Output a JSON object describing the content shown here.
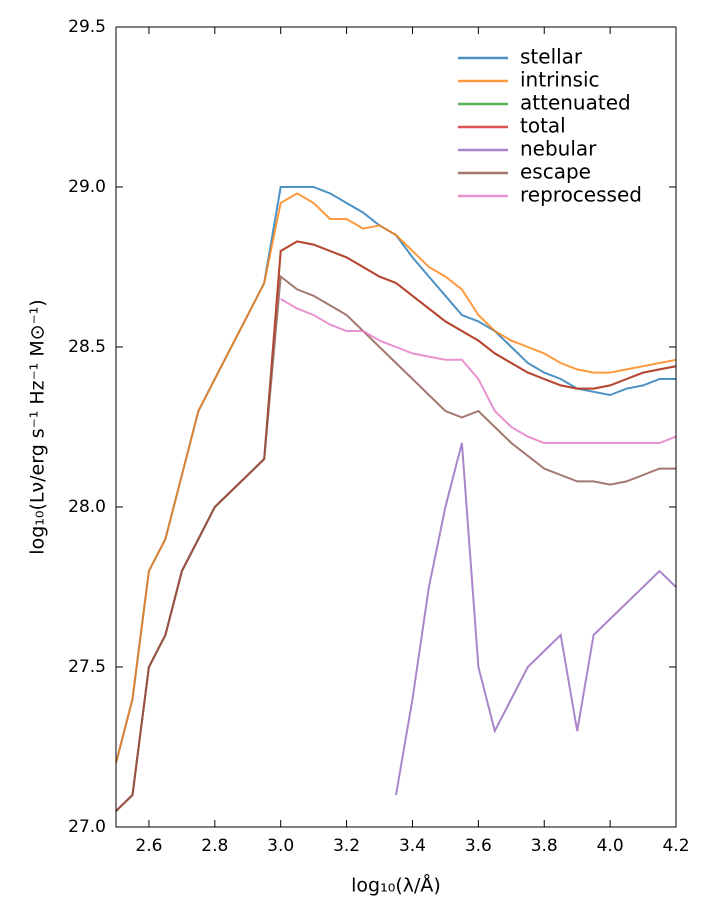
{
  "chart_data": {
    "type": "line",
    "x_label": "log₁₀(λ/Å)",
    "y_label": "log₁₀(Lν/erg s⁻¹ Hz⁻¹ M⊙⁻¹)",
    "x": [
      2.5,
      2.55,
      2.6,
      2.65,
      2.7,
      2.75,
      2.8,
      2.85,
      2.9,
      2.95,
      3.0,
      3.05,
      3.1,
      3.15,
      3.2,
      3.25,
      3.3,
      3.35,
      3.4,
      3.45,
      3.5,
      3.55,
      3.6,
      3.65,
      3.7,
      3.75,
      3.8,
      3.85,
      3.9,
      3.95,
      4.0,
      4.05,
      4.1,
      4.15,
      4.2
    ],
    "series": [
      {
        "name": "stellar",
        "color": "#1f77b4",
        "values": [
          27.2,
          27.4,
          27.8,
          27.9,
          28.1,
          28.3,
          28.4,
          28.5,
          28.6,
          28.7,
          29.0,
          29.0,
          29.0,
          28.98,
          28.95,
          28.92,
          28.88,
          28.85,
          28.78,
          28.72,
          28.66,
          28.6,
          28.58,
          28.55,
          28.5,
          28.45,
          28.42,
          28.4,
          28.37,
          28.36,
          28.35,
          28.37,
          28.38,
          28.4,
          28.4
        ]
      },
      {
        "name": "intrinsic",
        "color": "#ff7f0e",
        "values": [
          27.2,
          27.4,
          27.8,
          27.9,
          28.1,
          28.3,
          28.4,
          28.5,
          28.6,
          28.7,
          28.95,
          28.98,
          28.95,
          28.9,
          28.9,
          28.87,
          28.88,
          28.85,
          28.8,
          28.75,
          28.72,
          28.68,
          28.6,
          28.55,
          28.52,
          28.5,
          28.48,
          28.45,
          28.43,
          28.42,
          28.42,
          28.43,
          28.44,
          28.45,
          28.46
        ]
      },
      {
        "name": "attenuated",
        "color": "#2ca02c",
        "values": [
          27.05,
          27.1,
          27.5,
          27.6,
          27.8,
          27.9,
          28.0,
          28.05,
          28.1,
          28.15,
          28.8,
          28.83,
          28.82,
          28.8,
          28.78,
          28.75,
          28.72,
          28.7,
          28.66,
          28.62,
          28.58,
          28.55,
          28.52,
          28.48,
          28.45,
          28.42,
          28.4,
          28.38,
          28.37,
          28.37,
          28.38,
          28.4,
          28.42,
          28.43,
          28.44
        ]
      },
      {
        "name": "total",
        "color": "#d62728",
        "values": [
          27.05,
          27.1,
          27.5,
          27.6,
          27.8,
          27.9,
          28.0,
          28.05,
          28.1,
          28.15,
          28.8,
          28.83,
          28.82,
          28.8,
          28.78,
          28.75,
          28.72,
          28.7,
          28.66,
          28.62,
          28.58,
          28.55,
          28.52,
          28.48,
          28.45,
          28.42,
          28.4,
          28.38,
          28.37,
          28.37,
          28.38,
          28.4,
          28.42,
          28.43,
          28.44
        ]
      },
      {
        "name": "nebular",
        "color": "#9467bd",
        "values": [
          null,
          null,
          null,
          null,
          null,
          null,
          null,
          null,
          null,
          null,
          null,
          null,
          null,
          null,
          null,
          null,
          null,
          27.1,
          27.4,
          27.75,
          28.0,
          28.2,
          27.5,
          27.3,
          27.4,
          27.5,
          27.55,
          27.6,
          27.3,
          27.6,
          27.65,
          27.7,
          27.75,
          27.8,
          27.75
        ]
      },
      {
        "name": "escape",
        "color": "#8c564b",
        "values": [
          27.05,
          27.1,
          27.5,
          27.6,
          27.8,
          27.9,
          28.0,
          28.05,
          28.1,
          28.15,
          28.72,
          28.68,
          28.66,
          28.63,
          28.6,
          28.55,
          28.5,
          28.45,
          28.4,
          28.35,
          28.3,
          28.28,
          28.3,
          28.25,
          28.2,
          28.16,
          28.12,
          28.1,
          28.08,
          28.08,
          28.07,
          28.08,
          28.1,
          28.12,
          28.12
        ]
      },
      {
        "name": "reprocessed",
        "color": "#e377c2",
        "values": [
          null,
          null,
          null,
          null,
          null,
          null,
          null,
          null,
          null,
          null,
          28.65,
          28.62,
          28.6,
          28.57,
          28.55,
          28.55,
          28.52,
          28.5,
          28.48,
          28.47,
          28.46,
          28.46,
          28.4,
          28.3,
          28.25,
          28.22,
          28.2,
          28.2,
          28.2,
          28.2,
          28.2,
          28.2,
          28.2,
          28.2,
          28.22
        ]
      }
    ],
    "xlim": [
      2.5,
      4.2
    ],
    "xticks": [
      2.6,
      2.8,
      {
        "value": 3,
        "label": "3.0"
      },
      3.2,
      3.4,
      3.6,
      3.8,
      {
        "value": 4,
        "label": "4.0"
      },
      4.2
    ],
    "ylim": [
      27,
      29.5
    ],
    "yticks": [
      {
        "value": 27,
        "label": "27.0"
      },
      27.5,
      {
        "value": 28,
        "label": "28.0"
      },
      28.5,
      {
        "value": 29,
        "label": "29.0"
      },
      29.5
    ],
    "legend": "upper right"
  }
}
